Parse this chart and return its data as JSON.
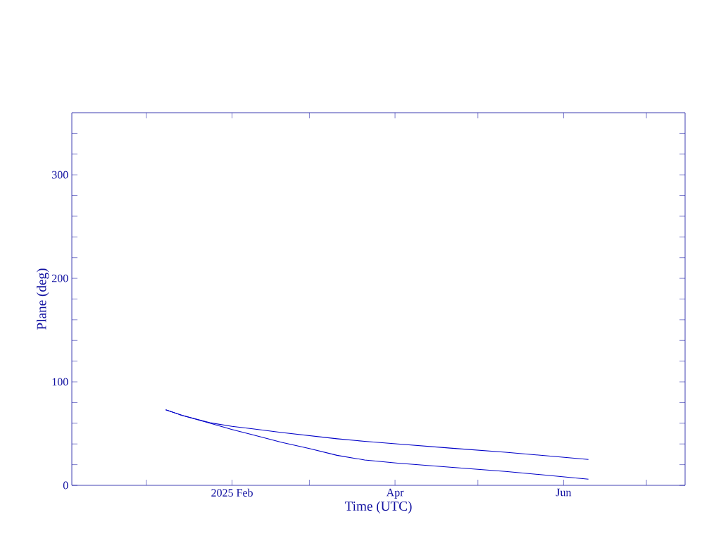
{
  "chart_data": {
    "type": "line",
    "xlabel": "Time (UTC)",
    "ylabel": "Plane (deg)",
    "xlim": [
      "2024-12-05",
      "2025-07-15"
    ],
    "xticks": [
      {
        "value": "2025-01-01",
        "label": null
      },
      {
        "value": "2025-02-01",
        "label": "2025 Feb"
      },
      {
        "value": "2025-03-01",
        "label": null
      },
      {
        "value": "2025-04-01",
        "label": "Apr"
      },
      {
        "value": "2025-05-01",
        "label": null
      },
      {
        "value": "2025-06-01",
        "label": "Jun"
      },
      {
        "value": "2025-07-01",
        "label": null
      }
    ],
    "ylim": [
      0,
      360
    ],
    "yticks": [
      0,
      {
        "value": 20,
        "label": null
      },
      {
        "value": 40,
        "label": null
      },
      {
        "value": 60,
        "label": null
      },
      {
        "value": 80,
        "label": null
      },
      100,
      {
        "value": 120,
        "label": null
      },
      {
        "value": 140,
        "label": null
      },
      {
        "value": 160,
        "label": null
      },
      {
        "value": 180,
        "label": null
      },
      200,
      {
        "value": 220,
        "label": null
      },
      {
        "value": 240,
        "label": null
      },
      {
        "value": 260,
        "label": null
      },
      {
        "value": 280,
        "label": null
      },
      300,
      {
        "value": 320,
        "label": null
      },
      {
        "value": 340,
        "label": null
      }
    ],
    "x": [
      "2025-01-08",
      "2025-01-14",
      "2025-01-24",
      "2025-02-01",
      "2025-02-09",
      "2025-02-19",
      "2025-03-01",
      "2025-03-11",
      "2025-03-21",
      "2025-04-02",
      "2025-04-21",
      "2025-05-11",
      "2025-06-10"
    ],
    "series": [
      {
        "color": "#0000c8",
        "values": [
          73,
          67.5,
          60.5,
          57,
          54.5,
          51,
          48,
          45,
          42.5,
          40,
          36,
          32,
          25
        ]
      },
      {
        "color": "#0000c8",
        "values": [
          73,
          67.5,
          60,
          54,
          48.5,
          41.5,
          35.5,
          29,
          24.5,
          21.5,
          17.5,
          13.5,
          6
        ]
      }
    ],
    "grid": false,
    "marker": "none",
    "line_style": "solid"
  }
}
